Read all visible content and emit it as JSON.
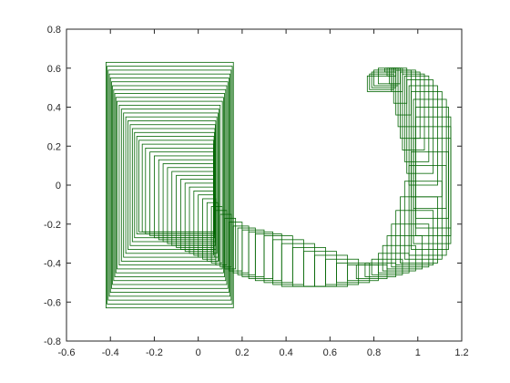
{
  "chart_data": {
    "type": "line",
    "title": "",
    "xlabel": "",
    "ylabel": "",
    "xlim": [
      -0.6,
      1.2
    ],
    "ylim": [
      -0.8,
      0.8
    ],
    "xticks": [
      -0.6,
      -0.4,
      -0.2,
      0,
      0.2,
      0.4,
      0.6,
      0.8,
      1,
      1.2
    ],
    "yticks": [
      -0.8,
      -0.6,
      -0.4,
      -0.2,
      0,
      0.2,
      0.4,
      0.6,
      0.8
    ],
    "xtick_labels": [
      "-0.6",
      "-0.4",
      "-0.2",
      "0",
      "0.2",
      "0.4",
      "0.6",
      "0.8",
      "1",
      "1.2"
    ],
    "ytick_labels": [
      "-0.8",
      "-0.6",
      "-0.4",
      "-0.2",
      "0",
      "0.2",
      "0.4",
      "0.6",
      "0.8"
    ],
    "grid": false,
    "box": true,
    "series_color": "#006400",
    "series": [
      {
        "shape": "rectangle-outlines",
        "rectangles": [
          [
            -0.42,
            -0.63,
            0.16,
            0.63
          ],
          [
            -0.415,
            -0.61,
            0.155,
            0.61
          ],
          [
            -0.41,
            -0.59,
            0.15,
            0.59
          ],
          [
            -0.405,
            -0.57,
            0.145,
            0.57
          ],
          [
            -0.4,
            -0.55,
            0.14,
            0.55
          ],
          [
            -0.395,
            -0.53,
            0.135,
            0.53
          ],
          [
            -0.39,
            -0.51,
            0.13,
            0.51
          ],
          [
            -0.385,
            -0.49,
            0.125,
            0.49
          ],
          [
            -0.38,
            -0.47,
            0.12,
            0.47
          ],
          [
            -0.375,
            -0.45,
            0.115,
            0.45
          ],
          [
            -0.37,
            -0.43,
            0.11,
            0.43
          ],
          [
            -0.36,
            -0.41,
            0.1,
            0.41
          ],
          [
            -0.35,
            -0.39,
            0.095,
            0.39
          ],
          [
            -0.34,
            -0.37,
            0.09,
            0.37
          ],
          [
            -0.33,
            -0.35,
            0.085,
            0.35
          ],
          [
            -0.32,
            -0.33,
            0.08,
            0.33
          ],
          [
            -0.31,
            -0.31,
            0.078,
            0.31
          ],
          [
            -0.3,
            -0.29,
            0.076,
            0.29
          ],
          [
            -0.29,
            -0.27,
            0.074,
            0.27
          ],
          [
            -0.28,
            -0.25,
            0.072,
            0.25
          ],
          [
            -0.27,
            -0.24,
            0.07,
            0.23
          ],
          [
            -0.255,
            -0.24,
            0.07,
            0.21
          ],
          [
            -0.24,
            -0.25,
            0.07,
            0.19
          ],
          [
            -0.22,
            -0.26,
            0.07,
            0.17
          ],
          [
            -0.2,
            -0.27,
            0.07,
            0.15
          ],
          [
            -0.18,
            -0.28,
            0.07,
            0.13
          ],
          [
            -0.16,
            -0.29,
            0.07,
            0.11
          ],
          [
            -0.14,
            -0.3,
            0.07,
            0.09
          ],
          [
            -0.12,
            -0.31,
            0.07,
            0.07
          ],
          [
            -0.1,
            -0.32,
            0.07,
            0.05
          ],
          [
            -0.08,
            -0.33,
            0.07,
            0.03
          ],
          [
            -0.06,
            -0.34,
            0.07,
            0.01
          ],
          [
            -0.04,
            -0.35,
            0.07,
            -0.01
          ],
          [
            -0.02,
            -0.36,
            0.07,
            -0.03
          ],
          [
            0.0,
            -0.37,
            0.075,
            -0.05
          ],
          [
            0.02,
            -0.38,
            0.08,
            -0.07
          ],
          [
            0.04,
            -0.39,
            0.09,
            -0.09
          ],
          [
            0.06,
            -0.4,
            0.11,
            -0.11
          ],
          [
            0.08,
            -0.41,
            0.13,
            -0.13
          ],
          [
            0.1,
            -0.42,
            0.15,
            -0.15
          ],
          [
            0.12,
            -0.43,
            0.17,
            -0.17
          ],
          [
            0.14,
            -0.44,
            0.2,
            -0.19
          ],
          [
            0.16,
            -0.45,
            0.23,
            -0.21
          ],
          [
            0.18,
            -0.46,
            0.26,
            -0.22
          ],
          [
            0.2,
            -0.47,
            0.3,
            -0.23
          ],
          [
            0.23,
            -0.48,
            0.34,
            -0.24
          ],
          [
            0.26,
            -0.49,
            0.38,
            -0.25
          ],
          [
            0.3,
            -0.5,
            0.43,
            -0.26
          ],
          [
            0.34,
            -0.51,
            0.48,
            -0.28
          ],
          [
            0.38,
            -0.52,
            0.53,
            -0.3
          ],
          [
            0.43,
            -0.52,
            0.58,
            -0.32
          ],
          [
            0.48,
            -0.52,
            0.63,
            -0.34
          ],
          [
            0.53,
            -0.52,
            0.68,
            -0.36
          ],
          [
            0.58,
            -0.51,
            0.73,
            -0.38
          ],
          [
            0.63,
            -0.5,
            0.78,
            -0.4
          ],
          [
            0.68,
            -0.49,
            0.82,
            -0.41
          ],
          [
            0.72,
            -0.48,
            0.86,
            -0.41
          ],
          [
            0.76,
            -0.47,
            0.9,
            -0.4
          ],
          [
            0.79,
            -0.46,
            0.93,
            -0.38
          ],
          [
            0.82,
            -0.45,
            0.96,
            -0.35
          ],
          [
            0.84,
            -0.44,
            0.99,
            -0.31
          ],
          [
            0.86,
            -0.43,
            1.02,
            -0.26
          ],
          [
            0.88,
            -0.42,
            1.05,
            -0.2
          ],
          [
            0.9,
            -0.41,
            1.07,
            -0.13
          ],
          [
            0.92,
            -0.4,
            1.09,
            -0.06
          ],
          [
            0.94,
            -0.38,
            1.11,
            0.02
          ],
          [
            0.96,
            -0.36,
            1.13,
            0.1
          ],
          [
            0.97,
            -0.33,
            1.14,
            0.17
          ],
          [
            0.98,
            -0.3,
            1.15,
            0.24
          ],
          [
            0.99,
            -0.26,
            1.15,
            0.3
          ],
          [
            0.99,
            -0.22,
            1.15,
            0.35
          ],
          [
            0.99,
            -0.17,
            1.14,
            0.4
          ],
          [
            0.98,
            -0.12,
            1.13,
            0.44
          ],
          [
            0.97,
            -0.06,
            1.11,
            0.48
          ],
          [
            0.96,
            0.0,
            1.09,
            0.51
          ],
          [
            0.95,
            0.06,
            1.07,
            0.54
          ],
          [
            0.94,
            0.12,
            1.05,
            0.56
          ],
          [
            0.93,
            0.18,
            1.03,
            0.57
          ],
          [
            0.92,
            0.24,
            1.01,
            0.58
          ],
          [
            0.91,
            0.3,
            0.99,
            0.59
          ],
          [
            0.9,
            0.36,
            0.97,
            0.59
          ],
          [
            0.89,
            0.42,
            0.95,
            0.6
          ],
          [
            0.88,
            0.48,
            0.93,
            0.6
          ],
          [
            0.87,
            0.52,
            0.91,
            0.6
          ],
          [
            0.86,
            0.56,
            0.9,
            0.6
          ],
          [
            0.85,
            0.58,
            0.89,
            0.6
          ],
          [
            0.82,
            0.52,
            0.92,
            0.6
          ],
          [
            0.8,
            0.51,
            0.91,
            0.59
          ],
          [
            0.79,
            0.5,
            0.9,
            0.58
          ],
          [
            0.78,
            0.49,
            0.89,
            0.57
          ],
          [
            0.77,
            0.48,
            0.88,
            0.56
          ]
        ]
      }
    ]
  }
}
